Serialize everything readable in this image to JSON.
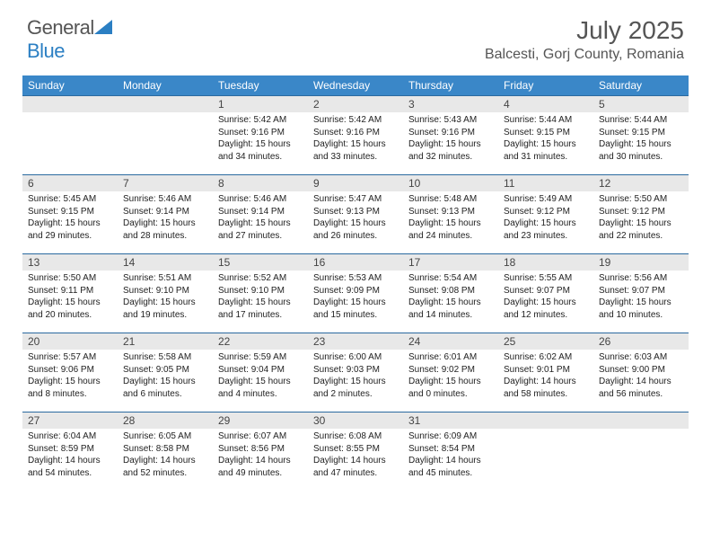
{
  "brand": {
    "name_part1": "General",
    "name_part2": "Blue"
  },
  "title": "July 2025",
  "location": "Balcesti, Gorj County, Romania",
  "colors": {
    "header_bg": "#3a87c8",
    "rule": "#2b6aa0",
    "daynum_bg": "#e8e8e8",
    "text": "#000000",
    "muted": "#555555"
  },
  "weekdays": [
    "Sunday",
    "Monday",
    "Tuesday",
    "Wednesday",
    "Thursday",
    "Friday",
    "Saturday"
  ],
  "weeks": [
    [
      null,
      null,
      {
        "n": "1",
        "sunrise": "5:42 AM",
        "sunset": "9:16 PM",
        "daylight": "15 hours and 34 minutes."
      },
      {
        "n": "2",
        "sunrise": "5:42 AM",
        "sunset": "9:16 PM",
        "daylight": "15 hours and 33 minutes."
      },
      {
        "n": "3",
        "sunrise": "5:43 AM",
        "sunset": "9:16 PM",
        "daylight": "15 hours and 32 minutes."
      },
      {
        "n": "4",
        "sunrise": "5:44 AM",
        "sunset": "9:15 PM",
        "daylight": "15 hours and 31 minutes."
      },
      {
        "n": "5",
        "sunrise": "5:44 AM",
        "sunset": "9:15 PM",
        "daylight": "15 hours and 30 minutes."
      }
    ],
    [
      {
        "n": "6",
        "sunrise": "5:45 AM",
        "sunset": "9:15 PM",
        "daylight": "15 hours and 29 minutes."
      },
      {
        "n": "7",
        "sunrise": "5:46 AM",
        "sunset": "9:14 PM",
        "daylight": "15 hours and 28 minutes."
      },
      {
        "n": "8",
        "sunrise": "5:46 AM",
        "sunset": "9:14 PM",
        "daylight": "15 hours and 27 minutes."
      },
      {
        "n": "9",
        "sunrise": "5:47 AM",
        "sunset": "9:13 PM",
        "daylight": "15 hours and 26 minutes."
      },
      {
        "n": "10",
        "sunrise": "5:48 AM",
        "sunset": "9:13 PM",
        "daylight": "15 hours and 24 minutes."
      },
      {
        "n": "11",
        "sunrise": "5:49 AM",
        "sunset": "9:12 PM",
        "daylight": "15 hours and 23 minutes."
      },
      {
        "n": "12",
        "sunrise": "5:50 AM",
        "sunset": "9:12 PM",
        "daylight": "15 hours and 22 minutes."
      }
    ],
    [
      {
        "n": "13",
        "sunrise": "5:50 AM",
        "sunset": "9:11 PM",
        "daylight": "15 hours and 20 minutes."
      },
      {
        "n": "14",
        "sunrise": "5:51 AM",
        "sunset": "9:10 PM",
        "daylight": "15 hours and 19 minutes."
      },
      {
        "n": "15",
        "sunrise": "5:52 AM",
        "sunset": "9:10 PM",
        "daylight": "15 hours and 17 minutes."
      },
      {
        "n": "16",
        "sunrise": "5:53 AM",
        "sunset": "9:09 PM",
        "daylight": "15 hours and 15 minutes."
      },
      {
        "n": "17",
        "sunrise": "5:54 AM",
        "sunset": "9:08 PM",
        "daylight": "15 hours and 14 minutes."
      },
      {
        "n": "18",
        "sunrise": "5:55 AM",
        "sunset": "9:07 PM",
        "daylight": "15 hours and 12 minutes."
      },
      {
        "n": "19",
        "sunrise": "5:56 AM",
        "sunset": "9:07 PM",
        "daylight": "15 hours and 10 minutes."
      }
    ],
    [
      {
        "n": "20",
        "sunrise": "5:57 AM",
        "sunset": "9:06 PM",
        "daylight": "15 hours and 8 minutes."
      },
      {
        "n": "21",
        "sunrise": "5:58 AM",
        "sunset": "9:05 PM",
        "daylight": "15 hours and 6 minutes."
      },
      {
        "n": "22",
        "sunrise": "5:59 AM",
        "sunset": "9:04 PM",
        "daylight": "15 hours and 4 minutes."
      },
      {
        "n": "23",
        "sunrise": "6:00 AM",
        "sunset": "9:03 PM",
        "daylight": "15 hours and 2 minutes."
      },
      {
        "n": "24",
        "sunrise": "6:01 AM",
        "sunset": "9:02 PM",
        "daylight": "15 hours and 0 minutes."
      },
      {
        "n": "25",
        "sunrise": "6:02 AM",
        "sunset": "9:01 PM",
        "daylight": "14 hours and 58 minutes."
      },
      {
        "n": "26",
        "sunrise": "6:03 AM",
        "sunset": "9:00 PM",
        "daylight": "14 hours and 56 minutes."
      }
    ],
    [
      {
        "n": "27",
        "sunrise": "6:04 AM",
        "sunset": "8:59 PM",
        "daylight": "14 hours and 54 minutes."
      },
      {
        "n": "28",
        "sunrise": "6:05 AM",
        "sunset": "8:58 PM",
        "daylight": "14 hours and 52 minutes."
      },
      {
        "n": "29",
        "sunrise": "6:07 AM",
        "sunset": "8:56 PM",
        "daylight": "14 hours and 49 minutes."
      },
      {
        "n": "30",
        "sunrise": "6:08 AM",
        "sunset": "8:55 PM",
        "daylight": "14 hours and 47 minutes."
      },
      {
        "n": "31",
        "sunrise": "6:09 AM",
        "sunset": "8:54 PM",
        "daylight": "14 hours and 45 minutes."
      },
      null,
      null
    ]
  ],
  "labels": {
    "sunrise": "Sunrise:",
    "sunset": "Sunset:",
    "daylight": "Daylight:"
  }
}
